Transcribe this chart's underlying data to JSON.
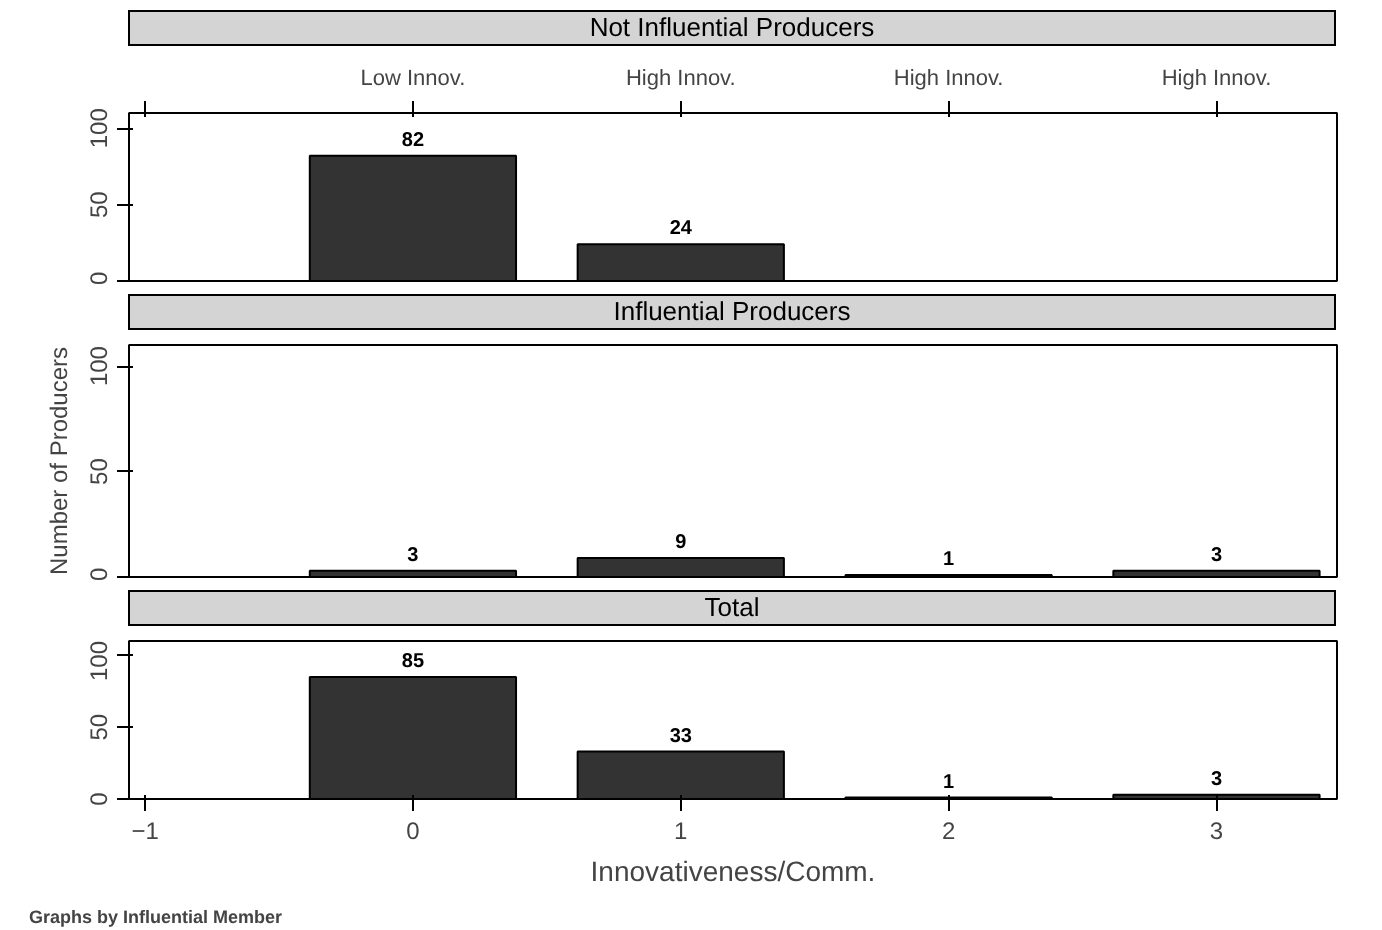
{
  "chart_data": [
    {
      "type": "bar",
      "title": "Not Influential Producers",
      "categories": [
        null,
        "Low Innov.",
        "High Innov.",
        "High Innov.",
        "High Innov."
      ],
      "values": [
        null,
        82,
        24,
        null,
        null
      ],
      "color": "#333333",
      "data_labels": true,
      "ylim": [
        0,
        110
      ],
      "yticks": [
        0,
        50,
        100
      ],
      "grid": false
    },
    {
      "type": "bar",
      "title": "Influential Producers",
      "ylabel": "Number of Producers",
      "x": [
        0,
        1,
        2,
        3
      ],
      "values": [
        3,
        9,
        1,
        3
      ],
      "color": "#333333",
      "data_labels": true,
      "xlim": [
        -1.06,
        3.45
      ],
      "ylim": [
        0,
        110
      ],
      "yticks": [
        0,
        50,
        100
      ],
      "tick_labels": "y",
      "grid": false
    },
    {
      "type": "bar",
      "title": "Total",
      "xlabel": "Innovativeness/Comm.",
      "annotations": [
        "Graphs by Influential Member"
      ],
      "x": [
        0,
        1,
        2,
        3
      ],
      "values": [
        85,
        33,
        1,
        3
      ],
      "color": "#333333",
      "data_labels": true,
      "xlim": [
        -1.06,
        3.45
      ],
      "xticks": [
        -1,
        0,
        1,
        2,
        3
      ],
      "ylim": [
        0,
        110
      ],
      "yticks": [
        0,
        50,
        100
      ],
      "grid": false
    }
  ]
}
